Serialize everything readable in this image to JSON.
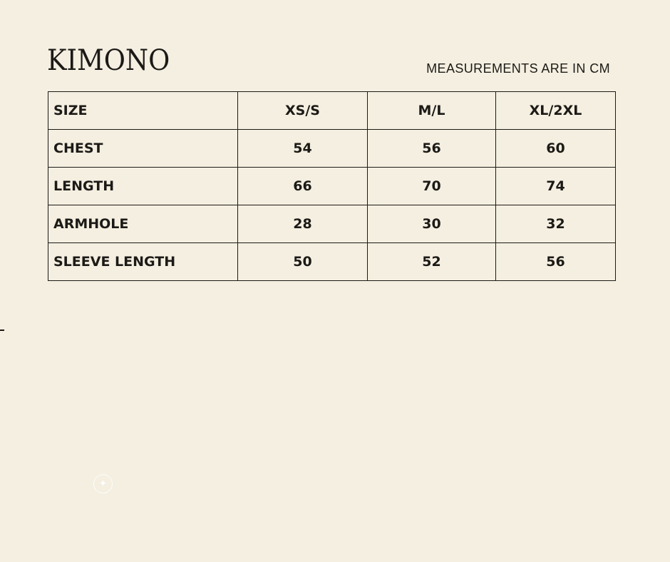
{
  "brand": "KIMONO",
  "note": "MEASUREMENTS ARE IN CM",
  "table": {
    "header": [
      "SIZE",
      "XS/S",
      "M/L",
      "XL/2XL"
    ],
    "rows": [
      [
        "CHEST",
        "54",
        "56",
        "60"
      ],
      [
        "LENGTH",
        "66",
        "70",
        "74"
      ],
      [
        "ARMHOLE",
        "28",
        "30",
        "32"
      ],
      [
        "SLEEVE LENGTH",
        "50",
        "52",
        "56"
      ]
    ]
  },
  "icons": {
    "sparkle": "sparkle-icon"
  }
}
